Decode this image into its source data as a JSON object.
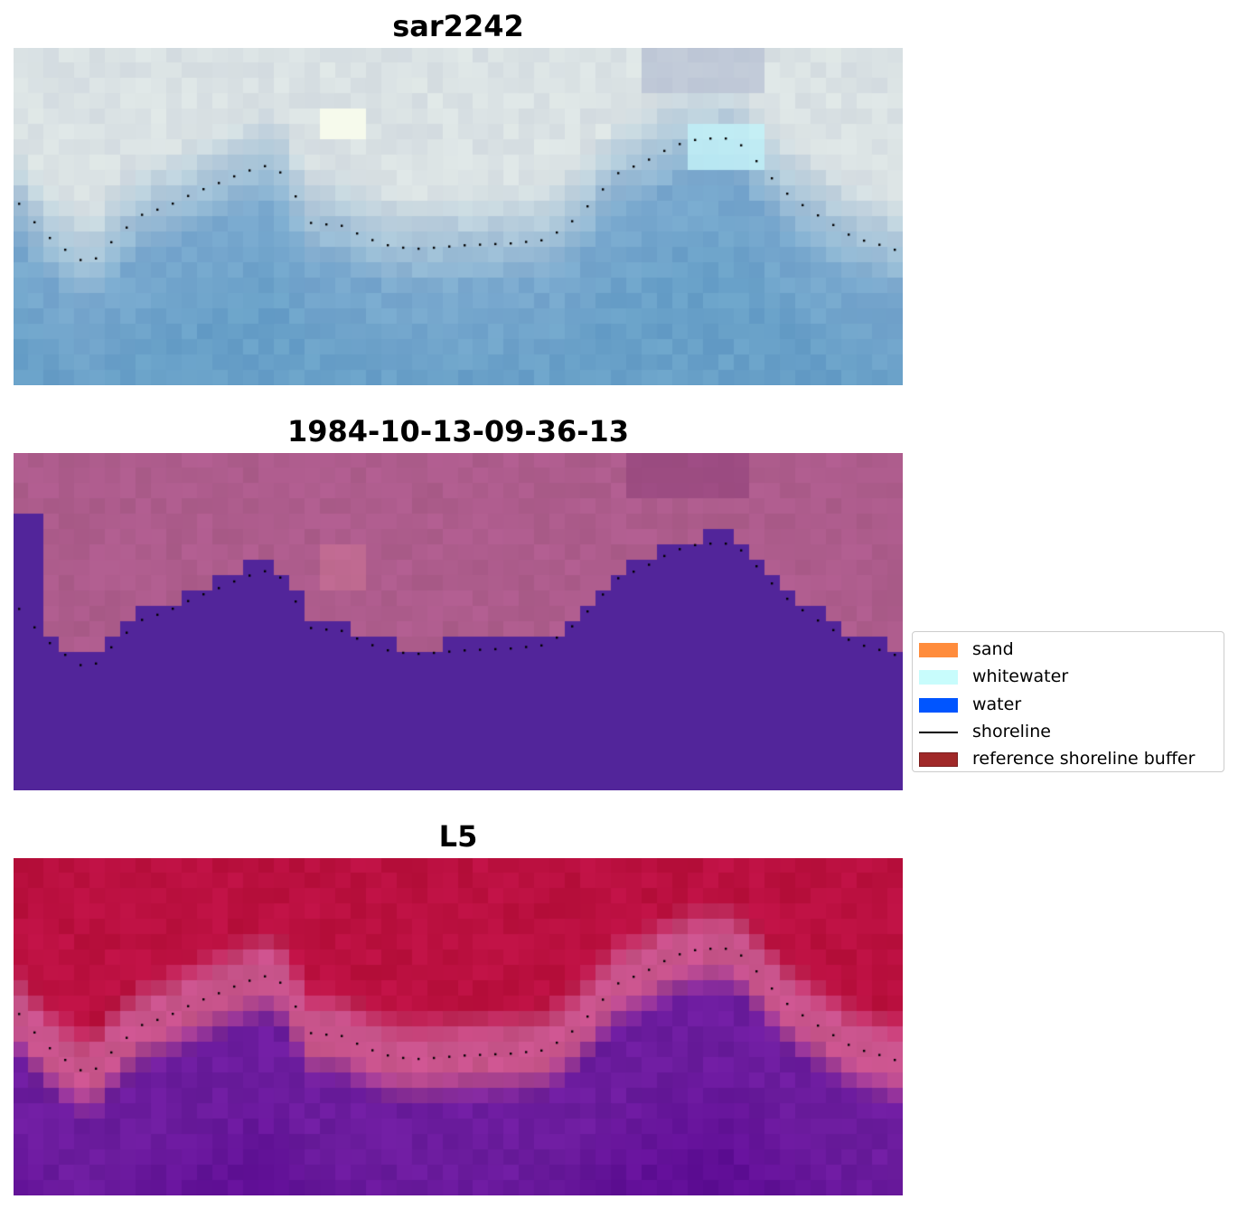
{
  "panels": [
    {
      "title": "sar2242",
      "style": "rgb"
    },
    {
      "title": "1984-10-13-09-36-13",
      "style": "classification"
    },
    {
      "title": "L5",
      "style": "probability"
    }
  ],
  "legend": {
    "items": [
      {
        "label": "sand",
        "kind": "patch",
        "color": "#ff8c3c"
      },
      {
        "label": "whitewater",
        "kind": "patch",
        "color": "#c8fcfc"
      },
      {
        "label": "water",
        "kind": "patch",
        "color": "#0055ff"
      },
      {
        "label": "shoreline",
        "kind": "line",
        "color": "#000000"
      },
      {
        "label": "reference shoreline buffer",
        "kind": "patch",
        "color": "#a02828",
        "border": "#7a1e1e"
      }
    ]
  },
  "colors": {
    "water_class": "#52259a",
    "land_class": "#ad5c8c",
    "land_prob": "#bb1040",
    "water_prob": "#6c1c9e",
    "buffer_prob": "#c9548c"
  }
}
